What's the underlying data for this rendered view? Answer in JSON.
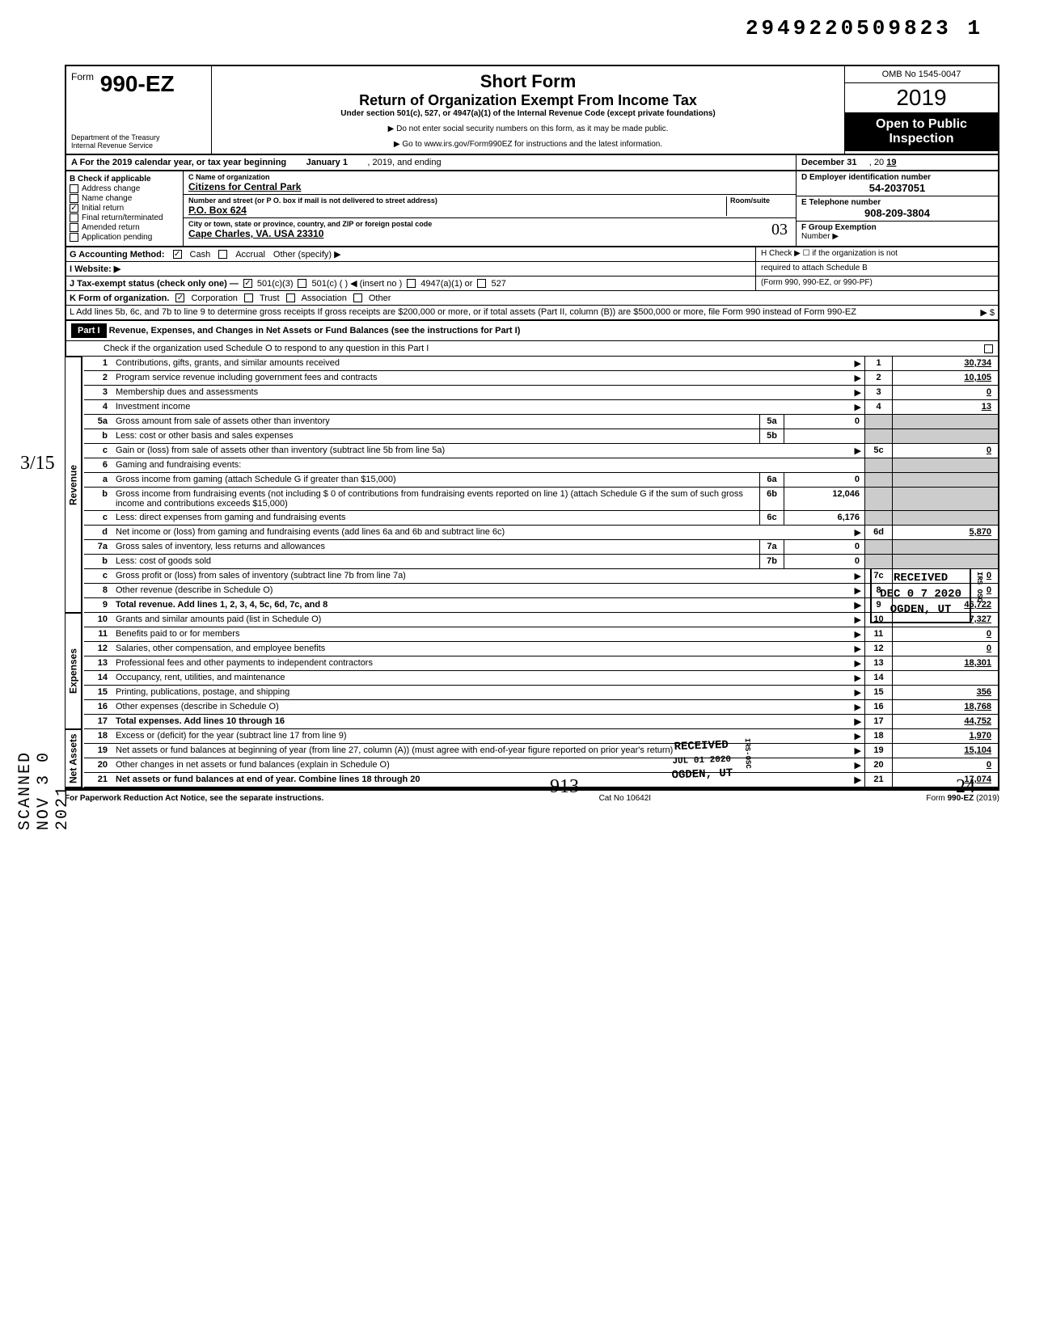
{
  "top_document_number": "2949220509823 1",
  "header": {
    "form_label_small": "Form",
    "form_number": "990-EZ",
    "title_line1": "Short Form",
    "title_line2": "Return of Organization Exempt From Income Tax",
    "subtitle": "Under section 501(c), 527, or 4947(a)(1) of the Internal Revenue Code (except private foundations)",
    "note1": "▶ Do not enter social security numbers on this form, as it may be made public.",
    "note2": "▶ Go to www.irs.gov/Form990EZ for instructions and the latest information.",
    "omb": "OMB No 1545-0047",
    "year": "2019",
    "open_public_1": "Open to Public",
    "open_public_2": "Inspection",
    "dept1": "Department of the Treasury",
    "dept2": "Internal Revenue Service"
  },
  "row_a": {
    "label": "A For the 2019 calendar year, or tax year beginning",
    "start": "January 1",
    "mid": ", 2019, and ending",
    "end_month": "December 31",
    "end_year_label": ", 20",
    "end_year": "19"
  },
  "section_b": {
    "label": "B Check if applicable",
    "checks": [
      {
        "label": "Address change",
        "checked": false
      },
      {
        "label": "Name change",
        "checked": false
      },
      {
        "label": "Initial return",
        "checked": true
      },
      {
        "label": "Final return/terminated",
        "checked": false
      },
      {
        "label": "Amended return",
        "checked": false
      },
      {
        "label": "Application pending",
        "checked": false
      }
    ],
    "c_label": "C  Name of organization",
    "c_value": "Citizens for Central Park",
    "street_label": "Number and street (or P O. box if mail is not delivered to street address)",
    "street_value": "P.O. Box 624",
    "room_label": "Room/suite",
    "city_label": "City or town, state or province, country, and ZIP or foreign postal code",
    "city_value": "Cape Charles, VA. USA 23310",
    "city_hand": "03",
    "d_label": "D Employer identification number",
    "d_value": "54-2037051",
    "e_label": "E Telephone number",
    "e_value": "908-209-3804",
    "f_label": "F Group Exemption",
    "f_label2": "Number ▶"
  },
  "lines_top": {
    "g_label": "G Accounting Method:",
    "g_cash": "Cash",
    "g_accrual": "Accrual",
    "g_other": "Other (specify) ▶",
    "h_label": "H Check ▶ ☐ if the organization is not",
    "h_label2": "required to attach Schedule B",
    "h_label3": "(Form 990, 990-EZ, or 990-PF)",
    "i_label": "I  Website: ▶",
    "j_label": "J Tax-exempt status (check only one) —",
    "j_501c3": "501(c)(3)",
    "j_501c": "501(c) (       ) ◀ (insert no )",
    "j_4947": "4947(a)(1) or",
    "j_527": "527",
    "k_label": "K Form of organization.",
    "k_corp": "Corporation",
    "k_trust": "Trust",
    "k_assoc": "Association",
    "k_other": "Other",
    "l_text": "L Add lines 5b, 6c, and 7b to line 9 to determine gross receipts  If gross receipts are $200,000 or more, or if total assets (Part II, column (B)) are $500,000 or more, file Form 990 instead of Form 990-EZ",
    "l_arrow": "▶  $"
  },
  "part1": {
    "label": "Part I",
    "title": "Revenue, Expenses, and Changes in Net Assets or Fund Balances (see the instructions for Part I)",
    "check_line": "Check if the organization used Schedule O to respond to any question in this Part I"
  },
  "revenue_label": "Revenue",
  "expenses_label": "Expenses",
  "netassets_label": "Net Assets",
  "rows": [
    {
      "n": "1",
      "desc": "Contributions, gifts, grants, and similar amounts received",
      "box": "1",
      "amt": "30,734"
    },
    {
      "n": "2",
      "desc": "Program service revenue including government fees and contracts",
      "box": "2",
      "amt": "10,105"
    },
    {
      "n": "3",
      "desc": "Membership dues and assessments",
      "box": "3",
      "amt": "0"
    },
    {
      "n": "4",
      "desc": "Investment income",
      "box": "4",
      "amt": "13"
    },
    {
      "n": "5a",
      "desc": "Gross amount from sale of assets other than inventory",
      "mid_box": "5a",
      "mid_amt": "0"
    },
    {
      "n": "b",
      "desc": "Less: cost or other basis and sales expenses",
      "mid_box": "5b",
      "mid_amt": ""
    },
    {
      "n": "c",
      "desc": "Gain or (loss) from sale of assets other than inventory (subtract line 5b from line 5a)",
      "box": "5c",
      "amt": "0"
    },
    {
      "n": "6",
      "desc": "Gaming and fundraising events:"
    },
    {
      "n": "a",
      "desc": "Gross income from gaming (attach Schedule G if greater than $15,000)",
      "mid_box": "6a",
      "mid_amt": "0"
    },
    {
      "n": "b",
      "desc": "Gross income from fundraising events (not including  $                    0 of contributions from fundraising events reported on line 1) (attach Schedule G if the sum of such gross income and contributions exceeds $15,000)",
      "mid_box": "6b",
      "mid_amt": "12,046"
    },
    {
      "n": "c",
      "desc": "Less: direct expenses from gaming and fundraising events",
      "mid_box": "6c",
      "mid_amt": "6,176"
    },
    {
      "n": "d",
      "desc": "Net income or (loss) from gaming and fundraising events (add lines 6a and 6b and subtract line 6c)",
      "box": "6d",
      "amt": "5,870"
    },
    {
      "n": "7a",
      "desc": "Gross sales of inventory, less returns and allowances",
      "mid_box": "7a",
      "mid_amt": "0"
    },
    {
      "n": "b",
      "desc": "Less: cost of goods sold",
      "mid_box": "7b",
      "mid_amt": "0"
    },
    {
      "n": "c",
      "desc": "Gross profit or (loss) from sales of inventory (subtract line 7b from line 7a)",
      "box": "7c",
      "amt": "0"
    },
    {
      "n": "8",
      "desc": "Other revenue (describe in Schedule O)",
      "box": "8",
      "amt": "0"
    },
    {
      "n": "9",
      "desc": "Total revenue. Add lines 1, 2, 3, 4, 5c, 6d, 7c, and 8",
      "box": "9",
      "amt": "46,722",
      "bold": true
    },
    {
      "n": "10",
      "desc": "Grants and similar amounts paid (list in Schedule O)",
      "box": "10",
      "amt": "7,327"
    },
    {
      "n": "11",
      "desc": "Benefits paid to or for members",
      "box": "11",
      "amt": "0"
    },
    {
      "n": "12",
      "desc": "Salaries, other compensation, and employee benefits",
      "box": "12",
      "amt": "0"
    },
    {
      "n": "13",
      "desc": "Professional fees and other payments to independent contractors",
      "box": "13",
      "amt": "18,301"
    },
    {
      "n": "14",
      "desc": "Occupancy, rent, utilities, and maintenance",
      "box": "14",
      "amt": ""
    },
    {
      "n": "15",
      "desc": "Printing, publications, postage, and shipping",
      "box": "15",
      "amt": "356"
    },
    {
      "n": "16",
      "desc": "Other expenses (describe in Schedule O)",
      "box": "16",
      "amt": "18,768"
    },
    {
      "n": "17",
      "desc": "Total expenses. Add lines 10 through 16",
      "box": "17",
      "amt": "44,752",
      "bold": true
    },
    {
      "n": "18",
      "desc": "Excess or (deficit) for the year (subtract line 17 from line 9)",
      "box": "18",
      "amt": "1,970"
    },
    {
      "n": "19",
      "desc": "Net assets or fund balances at beginning of year (from line 27, column (A)) (must agree with end-of-year figure reported on prior year's return)",
      "box": "19",
      "amt": "15,104"
    },
    {
      "n": "20",
      "desc": "Other changes in net assets or fund balances (explain in Schedule O)",
      "box": "20",
      "amt": "0"
    },
    {
      "n": "21",
      "desc": "Net assets or fund balances at end of year. Combine lines 18 through 20",
      "box": "21",
      "amt": "17,074",
      "bold": true
    }
  ],
  "footer": {
    "left": "For Paperwork Reduction Act Notice, see the separate instructions.",
    "mid": "Cat No  10642I",
    "right": "Form 990-EZ (2019)"
  },
  "stamps": {
    "scanned": "SCANNED  NOV 3 0 2021",
    "hand315": "3/15",
    "received1_l1": "RECEIVED",
    "received1_l2": "DEC 0 7 2020",
    "received1_l3": "OGDEN, UT",
    "received1_side": "IRS OSC",
    "received2_l1": "RECEIVED",
    "received2_l2": "JUL 01 2020",
    "received2_l3": "OGDEN, UT",
    "received2_side": "IRS-OSC",
    "bottom_hand1": "913",
    "bottom_hand2": "24"
  }
}
